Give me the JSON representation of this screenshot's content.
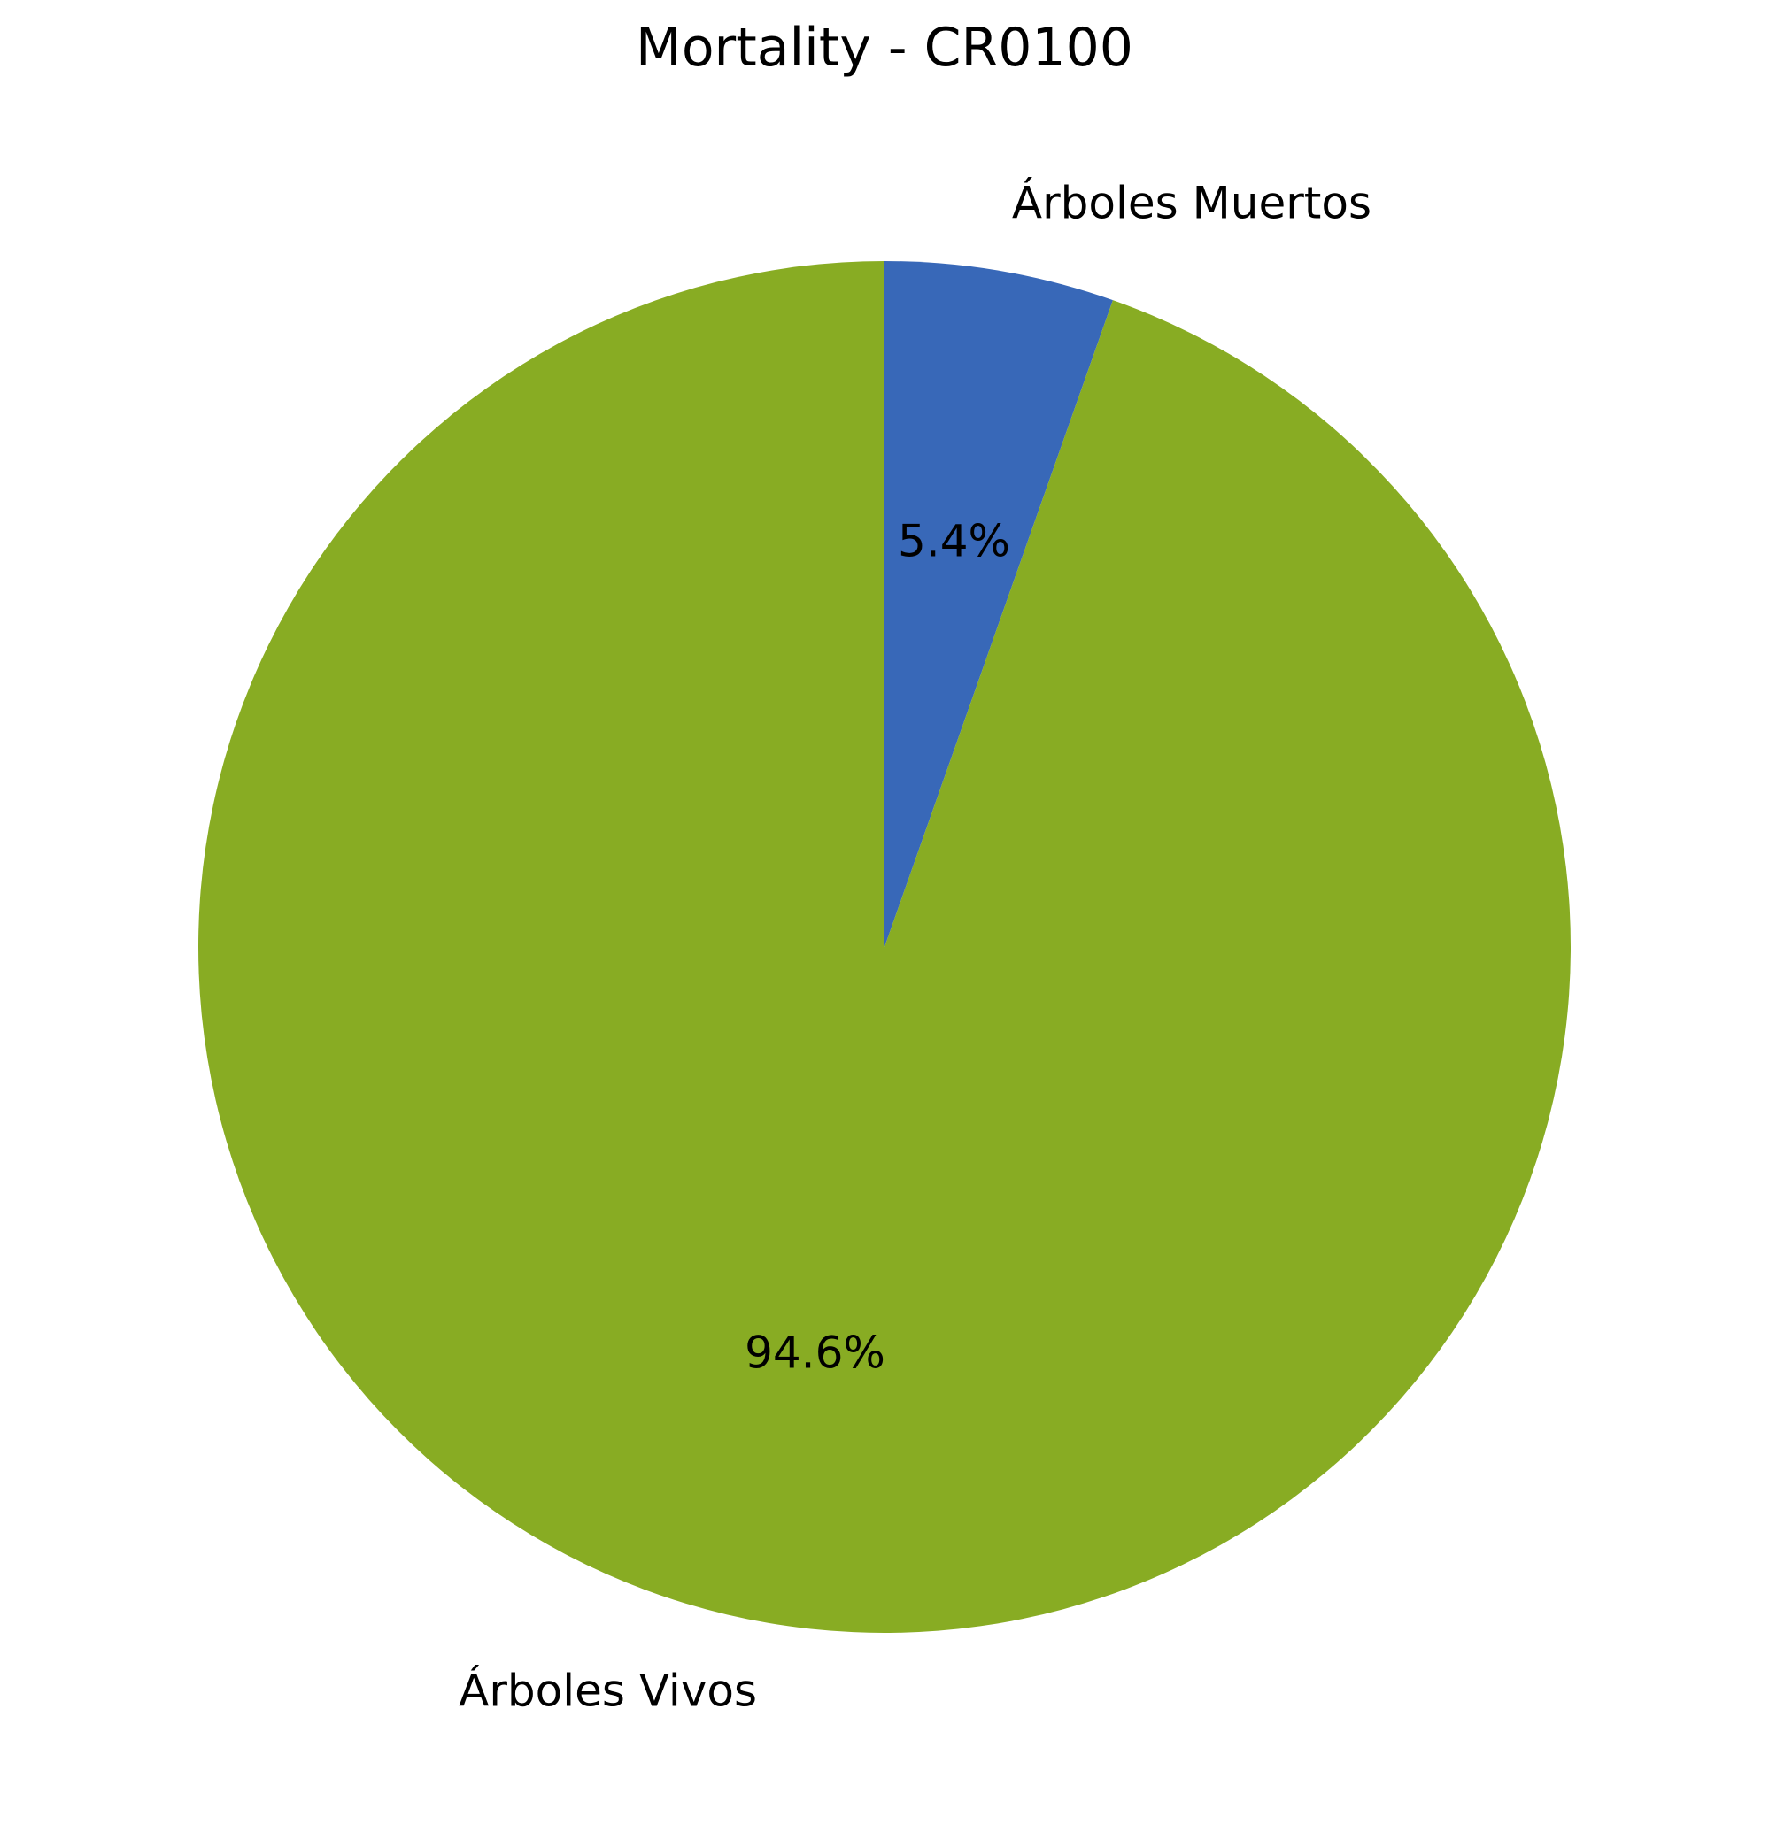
{
  "chart_data": {
    "type": "pie",
    "title": "Mortality - CR0100",
    "start_angle": 90,
    "direction": "clockwise",
    "slices": [
      {
        "label": "Árboles Muertos",
        "value": 5.4,
        "pct_label": "5.4%",
        "color": "#3868b8"
      },
      {
        "label": "Árboles Vivos",
        "value": 94.6,
        "pct_label": "94.6%",
        "color": "#88ac23"
      }
    ]
  }
}
